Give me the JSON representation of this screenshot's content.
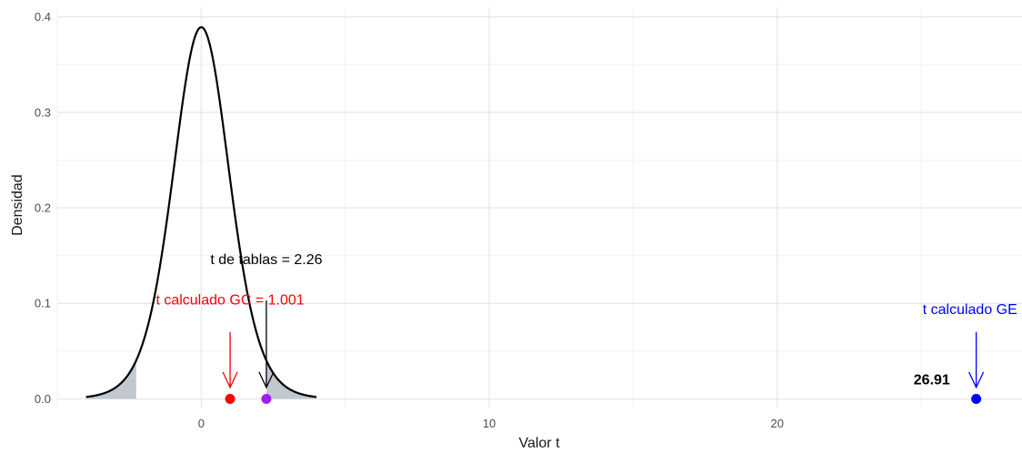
{
  "chart_data": {
    "type": "line",
    "xlabel": "Valor t",
    "ylabel": "Densidad",
    "xlim": [
      -5,
      28.5
    ],
    "ylim": [
      -0.01,
      0.41
    ],
    "x_ticks": [
      0,
      10,
      20
    ],
    "y_ticks": [
      0.0,
      0.1,
      0.2,
      0.3,
      0.4
    ],
    "x_tick_labels": [
      "0",
      "10",
      "20"
    ],
    "y_tick_labels": [
      "0.0",
      "0.1",
      "0.2",
      "0.3",
      "0.4"
    ],
    "grid": true,
    "curve": {
      "df": 10,
      "x_range": [
        -4,
        4
      ],
      "color": "#000000"
    },
    "shaded_regions": [
      {
        "from": -4,
        "to": -2.26,
        "color": "#c2c8cf"
      },
      {
        "from": 2.26,
        "to": 4,
        "color": "#c2c8cf"
      }
    ],
    "points": [
      {
        "x": 1.001,
        "y": 0,
        "color": "#ff0000"
      },
      {
        "x": 2.26,
        "y": 0,
        "color": "#a020f0"
      },
      {
        "x": 26.91,
        "y": 0,
        "color": "#0000ff"
      }
    ],
    "annotations": [
      {
        "text": "t de tablas = 2.26",
        "color": "#000000",
        "bold": false,
        "x": 2.26,
        "y": 0.141,
        "anchor": "middle"
      },
      {
        "text": "t calculado GC = 1.001",
        "color": "#ff0000",
        "bold": false,
        "x": 1.001,
        "y": 0.099,
        "anchor": "middle"
      },
      {
        "text": "t calculado GE =",
        "color": "#0000ff",
        "bold": false,
        "x": 26.91,
        "y": 0.089,
        "anchor": "middle"
      },
      {
        "text": "26.91",
        "color": "#000000",
        "bold": true,
        "x": 26.0,
        "y": 0.015,
        "anchor": "end"
      }
    ],
    "arrows": [
      {
        "x": 1.001,
        "y_from": 0.07,
        "y_to": 0.012,
        "color": "#ff0000"
      },
      {
        "x": 2.26,
        "y_from": 0.103,
        "y_to": 0.012,
        "color": "#000000"
      },
      {
        "x": 26.91,
        "y_from": 0.07,
        "y_to": 0.012,
        "color": "#0000ff"
      }
    ]
  }
}
